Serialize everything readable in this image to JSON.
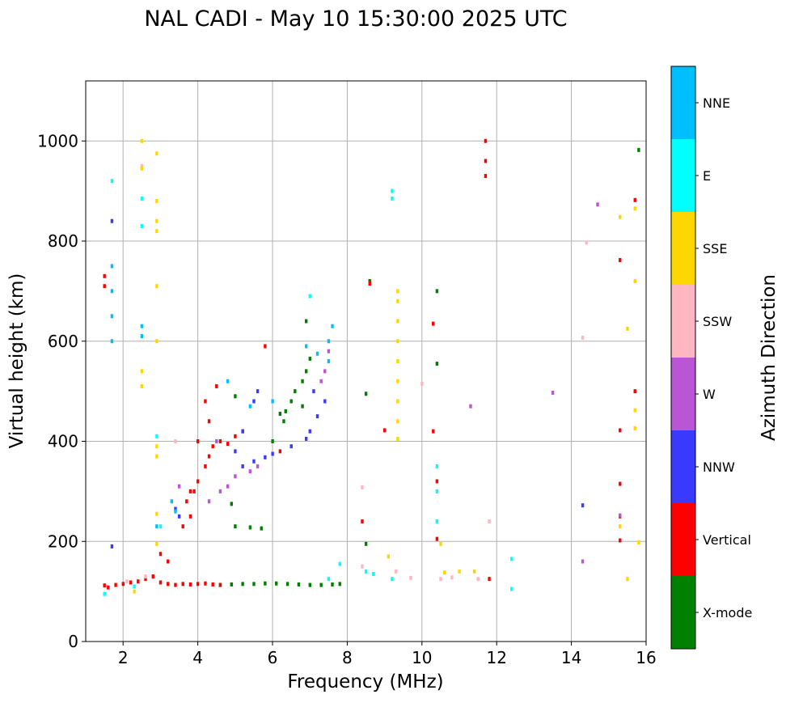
{
  "chart_data": {
    "type": "scatter",
    "title": "NAL CADI - May 10 15:30:00 2025 UTC",
    "xlabel": "Frequency (MHz)",
    "ylabel": "Virtual height (km)",
    "xlim": [
      1,
      16
    ],
    "ylim": [
      0,
      1120
    ],
    "xticks": [
      2,
      4,
      6,
      8,
      10,
      12,
      14,
      16
    ],
    "yticks": [
      0,
      200,
      400,
      600,
      800,
      1000
    ],
    "grid": true,
    "colorbar": {
      "label": "Azimuth Direction",
      "position": "right",
      "categories": [
        "X-mode",
        "Vertical",
        "NNW",
        "W",
        "SSW",
        "SSE",
        "E",
        "NNE"
      ],
      "colors": [
        "#008000",
        "#ff0000",
        "#3a3aff",
        "#ba55d3",
        "#ffb6c1",
        "#ffd700",
        "#00ffff",
        "#00bfff"
      ]
    },
    "series": [
      {
        "name": "X-mode",
        "points": [
          [
            4.6,
            113
          ],
          [
            4.9,
            114
          ],
          [
            5.2,
            115
          ],
          [
            5.5,
            115
          ],
          [
            5.8,
            116
          ],
          [
            6.1,
            116
          ],
          [
            6.4,
            115
          ],
          [
            6.7,
            114
          ],
          [
            7.0,
            113
          ],
          [
            7.3,
            113
          ],
          [
            7.6,
            114
          ],
          [
            7.8,
            115
          ],
          [
            5.0,
            230
          ],
          [
            5.4,
            228
          ],
          [
            5.7,
            226
          ],
          [
            6.0,
            400
          ],
          [
            6.3,
            440
          ],
          [
            6.35,
            460
          ],
          [
            6.5,
            480
          ],
          [
            6.6,
            500
          ],
          [
            6.8,
            520
          ],
          [
            6.9,
            540
          ],
          [
            7.0,
            565
          ],
          [
            6.9,
            640
          ],
          [
            8.5,
            495
          ],
          [
            8.5,
            195
          ],
          [
            8.6,
            720
          ],
          [
            10.4,
            555
          ],
          [
            15.8,
            982
          ],
          [
            4.9,
            275
          ],
          [
            5.0,
            490
          ],
          [
            6.2,
            455
          ],
          [
            6.8,
            470
          ],
          [
            10.4,
            700
          ]
        ]
      },
      {
        "name": "Vertical",
        "points": [
          [
            1.5,
            112
          ],
          [
            1.6,
            108
          ],
          [
            1.8,
            113
          ],
          [
            2.0,
            115
          ],
          [
            2.2,
            118
          ],
          [
            2.4,
            120
          ],
          [
            2.6,
            125
          ],
          [
            2.8,
            130
          ],
          [
            3.0,
            118
          ],
          [
            3.2,
            115
          ],
          [
            3.4,
            113
          ],
          [
            3.6,
            115
          ],
          [
            3.8,
            114
          ],
          [
            4.0,
            115
          ],
          [
            4.2,
            116
          ],
          [
            4.4,
            114
          ],
          [
            4.6,
            113
          ],
          [
            3.0,
            175
          ],
          [
            3.2,
            160
          ],
          [
            3.6,
            230
          ],
          [
            3.7,
            280
          ],
          [
            3.8,
            300
          ],
          [
            3.9,
            300
          ],
          [
            4.0,
            320
          ],
          [
            4.2,
            350
          ],
          [
            4.4,
            390
          ],
          [
            4.6,
            400
          ],
          [
            4.8,
            395
          ],
          [
            5.0,
            410
          ],
          [
            5.2,
            420
          ],
          [
            4.2,
            480
          ],
          [
            4.3,
            440
          ],
          [
            4.0,
            400
          ],
          [
            4.5,
            510
          ],
          [
            4.3,
            370
          ],
          [
            3.8,
            250
          ],
          [
            1.5,
            730
          ],
          [
            1.5,
            710
          ],
          [
            8.6,
            715
          ],
          [
            10.3,
            420
          ],
          [
            10.3,
            635
          ],
          [
            10.4,
            320
          ],
          [
            10.4,
            205
          ],
          [
            11.7,
            960
          ],
          [
            11.7,
            1000
          ],
          [
            11.7,
            930
          ],
          [
            15.3,
            762
          ],
          [
            15.3,
            422
          ],
          [
            15.3,
            315
          ],
          [
            15.3,
            250
          ],
          [
            15.3,
            202
          ],
          [
            15.7,
            500
          ],
          [
            15.7,
            882
          ],
          [
            8.4,
            240
          ],
          [
            9.0,
            422
          ],
          [
            11.8,
            125
          ],
          [
            5.8,
            590
          ],
          [
            6.2,
            380
          ]
        ]
      },
      {
        "name": "NNW",
        "points": [
          [
            5.2,
            350
          ],
          [
            5.5,
            360
          ],
          [
            5.8,
            368
          ],
          [
            6.0,
            375
          ],
          [
            6.5,
            390
          ],
          [
            6.9,
            405
          ],
          [
            7.0,
            420
          ],
          [
            7.2,
            450
          ],
          [
            7.4,
            480
          ],
          [
            5.5,
            480
          ],
          [
            5.2,
            420
          ],
          [
            5.6,
            500
          ],
          [
            1.7,
            840
          ],
          [
            1.7,
            190
          ],
          [
            14.3,
            272
          ],
          [
            3.4,
            265
          ],
          [
            3.5,
            250
          ],
          [
            5.0,
            380
          ],
          [
            7.1,
            500
          ]
        ]
      },
      {
        "name": "W",
        "points": [
          [
            4.6,
            300
          ],
          [
            5.0,
            330
          ],
          [
            5.4,
            340
          ],
          [
            4.3,
            280
          ],
          [
            4.8,
            310
          ],
          [
            5.6,
            350
          ],
          [
            7.3,
            520
          ],
          [
            7.4,
            540
          ],
          [
            7.5,
            580
          ],
          [
            11.3,
            470
          ],
          [
            13.5,
            497
          ],
          [
            14.3,
            160
          ],
          [
            14.7,
            873
          ],
          [
            15.3,
            252
          ],
          [
            4.5,
            400
          ],
          [
            3.5,
            310
          ]
        ]
      },
      {
        "name": "SSW",
        "points": [
          [
            8.4,
            150
          ],
          [
            9.3,
            140
          ],
          [
            10.5,
            125
          ],
          [
            10.8,
            128
          ],
          [
            11.5,
            125
          ],
          [
            11.8,
            240
          ],
          [
            14.3,
            607
          ],
          [
            10.0,
            515
          ],
          [
            8.4,
            308
          ],
          [
            3.4,
            400
          ],
          [
            2.5,
            950
          ],
          [
            2.1,
            120
          ],
          [
            2.6,
            130
          ],
          [
            9.7,
            127
          ],
          [
            14.4,
            797
          ]
        ]
      },
      {
        "name": "SSE",
        "points": [
          [
            2.5,
            1000
          ],
          [
            2.5,
            945
          ],
          [
            2.9,
            975
          ],
          [
            2.9,
            880
          ],
          [
            2.9,
            840
          ],
          [
            2.9,
            820
          ],
          [
            2.9,
            710
          ],
          [
            2.9,
            600
          ],
          [
            2.5,
            540
          ],
          [
            2.5,
            510
          ],
          [
            2.9,
            390
          ],
          [
            2.9,
            370
          ],
          [
            2.9,
            255
          ],
          [
            2.9,
            195
          ],
          [
            2.3,
            100
          ],
          [
            9.35,
            405
          ],
          [
            9.35,
            440
          ],
          [
            9.35,
            480
          ],
          [
            9.35,
            520
          ],
          [
            9.35,
            560
          ],
          [
            9.35,
            600
          ],
          [
            9.35,
            640
          ],
          [
            9.35,
            680
          ],
          [
            9.35,
            700
          ],
          [
            9.1,
            170
          ],
          [
            11.0,
            140
          ],
          [
            10.6,
            138
          ],
          [
            11.4,
            140
          ],
          [
            15.5,
            625
          ],
          [
            15.7,
            720
          ],
          [
            15.7,
            462
          ],
          [
            15.7,
            426
          ],
          [
            15.7,
            865
          ],
          [
            15.3,
            230
          ],
          [
            15.5,
            125
          ],
          [
            15.3,
            848
          ],
          [
            10.5,
            195
          ],
          [
            15.8,
            198
          ]
        ]
      },
      {
        "name": "E",
        "points": [
          [
            1.7,
            920
          ],
          [
            2.5,
            885
          ],
          [
            2.5,
            830
          ],
          [
            9.2,
            900
          ],
          [
            9.2,
            885
          ],
          [
            10.4,
            350
          ],
          [
            10.4,
            300
          ],
          [
            10.4,
            240
          ],
          [
            12.4,
            105
          ],
          [
            12.4,
            165
          ],
          [
            7.0,
            690
          ],
          [
            2.9,
            410
          ],
          [
            3.0,
            230
          ],
          [
            8.5,
            140
          ],
          [
            9.2,
            125
          ],
          [
            7.8,
            155
          ],
          [
            1.5,
            95
          ],
          [
            2.3,
            110
          ],
          [
            7.5,
            125
          ],
          [
            8.7,
            135
          ]
        ]
      },
      {
        "name": "NNE",
        "points": [
          [
            1.7,
            750
          ],
          [
            1.7,
            700
          ],
          [
            1.7,
            650
          ],
          [
            1.7,
            600
          ],
          [
            2.5,
            630
          ],
          [
            2.5,
            610
          ],
          [
            3.4,
            260
          ],
          [
            3.3,
            280
          ],
          [
            7.5,
            600
          ],
          [
            7.5,
            560
          ],
          [
            7.2,
            575
          ],
          [
            6.0,
            480
          ],
          [
            4.8,
            520
          ],
          [
            7.6,
            630
          ],
          [
            5.4,
            470
          ],
          [
            2.9,
            230
          ],
          [
            6.9,
            590
          ]
        ]
      }
    ]
  }
}
